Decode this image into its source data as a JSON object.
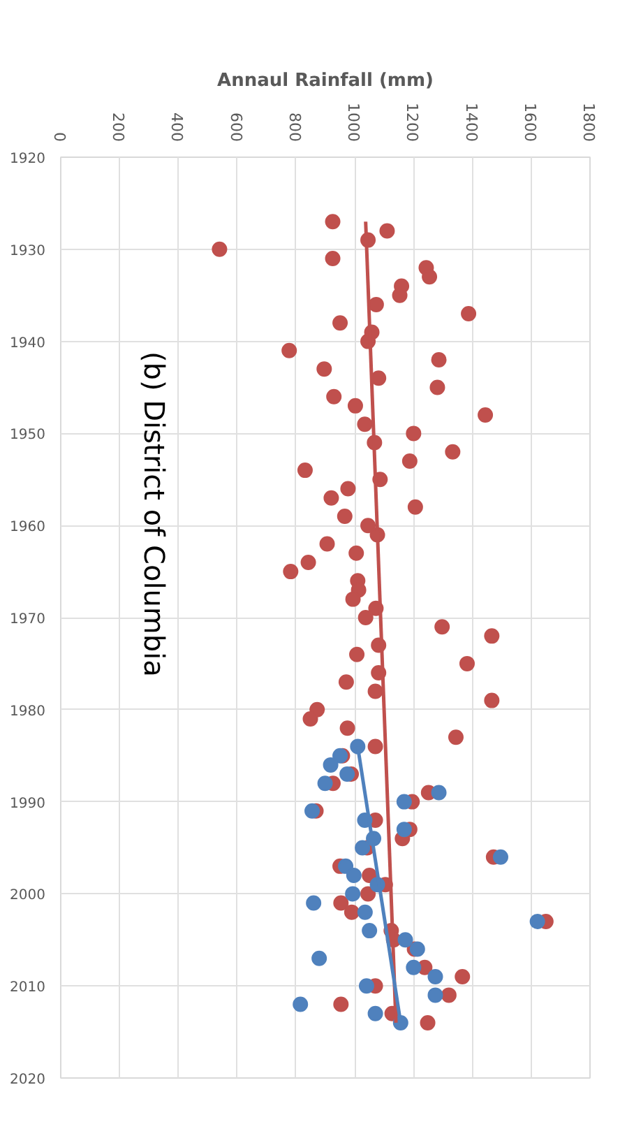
{
  "chart_data": {
    "type": "scatter",
    "title": "(b) District of Columbia",
    "xlabel": "Annaul Rainfall (mm)",
    "xlim": [
      0,
      1800
    ],
    "xticks": [
      0,
      200,
      400,
      600,
      800,
      1000,
      1200,
      1400,
      1600,
      1800
    ],
    "ylim": [
      2020,
      1920
    ],
    "yticks": [
      1920,
      1930,
      1940,
      1950,
      1960,
      1970,
      1980,
      1990,
      2000,
      2010,
      2020
    ],
    "grid": true,
    "marker": "circle",
    "series": [
      {
        "color": "#c0504d",
        "x": [
          925,
          1110,
          1045,
          540,
          925,
          1243,
          1254,
          1159,
          1153,
          1073,
          1387,
          950,
          1058,
          1045,
          777,
          1286,
          896,
          1081,
          1281,
          929,
          1002,
          1444,
          1034,
          1200,
          1067,
          1333,
          1187,
          831,
          1086,
          977,
          920,
          1206,
          966,
          1045,
          1077,
          906,
          1005,
          842,
          782,
          1010,
          1013,
          994,
          1072,
          1037,
          1297,
          1466,
          1081,
          1007,
          1382,
          1081,
          971,
          1070,
          1466,
          872,
          849,
          975,
          1344,
          1070,
          958,
          988,
          926,
          1251,
          1195,
          868,
          1070,
          1187,
          1162,
          1042,
          1472,
          950,
          1050,
          1104,
          1045,
          953,
          990,
          1650,
          1124,
          1132,
          1203,
          1238,
          1366,
          1070,
          1320,
          953,
          1127,
          1248
        ],
        "values": [
          1927,
          1928,
          1929,
          1930,
          1931,
          1932,
          1933,
          1934,
          1935,
          1936,
          1937,
          1938,
          1939,
          1940,
          1941,
          1942,
          1943,
          1944,
          1945,
          1946,
          1947,
          1948,
          1949,
          1950,
          1951,
          1952,
          1953,
          1954,
          1955,
          1956,
          1957,
          1958,
          1959,
          1960,
          1961,
          1962,
          1963,
          1964,
          1965,
          1966,
          1967,
          1968,
          1969,
          1970,
          1971,
          1972,
          1973,
          1974,
          1975,
          1976,
          1977,
          1978,
          1979,
          1980,
          1981,
          1982,
          1983,
          1984,
          1985,
          1987,
          1988,
          1989,
          1990,
          1991,
          1992,
          1993,
          1994,
          1995,
          1996,
          1997,
          1998,
          1999,
          2000,
          2001,
          2002,
          2003,
          2004,
          2005,
          2006,
          2008,
          2009,
          2010,
          2011,
          2012,
          2013,
          2014
        ]
      },
      {
        "color": "#4f81bd",
        "x": [
          1010,
          950,
          918,
          974,
          899,
          1286,
          1168,
          855,
          1034,
          1168,
          1064,
          1026,
          1496,
          969,
          997,
          1077,
          993,
          860,
          1035,
          1621,
          1050,
          1172,
          1213,
          879,
          1200,
          1274,
          1040,
          1274,
          815,
          1070,
          1156
        ],
        "values": [
          1984,
          1985,
          1986,
          1987,
          1988,
          1989,
          1990,
          1991,
          1992,
          1993,
          1994,
          1995,
          1996,
          1997,
          1998,
          1999,
          2000,
          2001,
          2002,
          2003,
          2004,
          2005,
          2006,
          2007,
          2008,
          2009,
          2010,
          2011,
          2012,
          2013,
          2014
        ]
      },
      {
        "type": "line",
        "marker": "none",
        "color": "#c0504d",
        "x": [
          1037,
          1140
        ],
        "values": [
          1927,
          2014
        ]
      },
      {
        "type": "line",
        "marker": "none",
        "color": "#4f81bd",
        "x": [
          1010,
          1156
        ],
        "values": [
          1984,
          2014
        ]
      }
    ]
  }
}
